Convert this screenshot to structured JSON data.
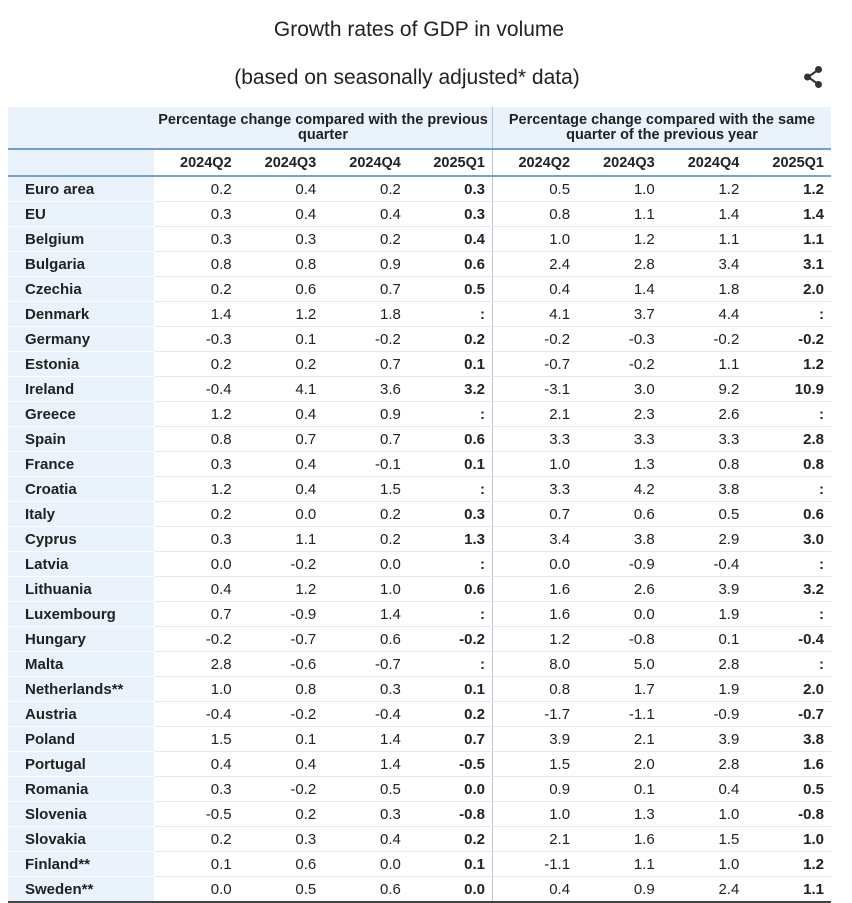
{
  "title": "Growth rates of GDP in volume",
  "subtitle": "(based on seasonally adjusted* data)",
  "share_icon": "share-icon",
  "header": {
    "group_qoq": "Percentage change compared with the previous quarter",
    "group_yoy": "Percentage change compared with the same quarter of the previous year",
    "quarters": [
      "2024Q2",
      "2024Q3",
      "2024Q4",
      "2025Q1"
    ]
  },
  "rows": [
    {
      "name": "Euro area",
      "qoq": [
        "0.2",
        "0.4",
        "0.2",
        "0.3"
      ],
      "yoy": [
        "0.5",
        "1.0",
        "1.2",
        "1.2"
      ]
    },
    {
      "name": "EU",
      "qoq": [
        "0.3",
        "0.4",
        "0.4",
        "0.3"
      ],
      "yoy": [
        "0.8",
        "1.1",
        "1.4",
        "1.4"
      ]
    },
    {
      "name": "Belgium",
      "qoq": [
        "0.3",
        "0.3",
        "0.2",
        "0.4"
      ],
      "yoy": [
        "1.0",
        "1.2",
        "1.1",
        "1.1"
      ]
    },
    {
      "name": "Bulgaria",
      "qoq": [
        "0.8",
        "0.8",
        "0.9",
        "0.6"
      ],
      "yoy": [
        "2.4",
        "2.8",
        "3.4",
        "3.1"
      ]
    },
    {
      "name": "Czechia",
      "qoq": [
        "0.2",
        "0.6",
        "0.7",
        "0.5"
      ],
      "yoy": [
        "0.4",
        "1.4",
        "1.8",
        "2.0"
      ]
    },
    {
      "name": "Denmark",
      "qoq": [
        "1.4",
        "1.2",
        "1.8",
        ":"
      ],
      "yoy": [
        "4.1",
        "3.7",
        "4.4",
        ":"
      ]
    },
    {
      "name": "Germany",
      "qoq": [
        "-0.3",
        "0.1",
        "-0.2",
        "0.2"
      ],
      "yoy": [
        "-0.2",
        "-0.3",
        "-0.2",
        "-0.2"
      ]
    },
    {
      "name": "Estonia",
      "qoq": [
        "0.2",
        "0.2",
        "0.7",
        "0.1"
      ],
      "yoy": [
        "-0.7",
        "-0.2",
        "1.1",
        "1.2"
      ]
    },
    {
      "name": "Ireland",
      "qoq": [
        "-0.4",
        "4.1",
        "3.6",
        "3.2"
      ],
      "yoy": [
        "-3.1",
        "3.0",
        "9.2",
        "10.9"
      ]
    },
    {
      "name": "Greece",
      "qoq": [
        "1.2",
        "0.4",
        "0.9",
        ":"
      ],
      "yoy": [
        "2.1",
        "2.3",
        "2.6",
        ":"
      ]
    },
    {
      "name": "Spain",
      "qoq": [
        "0.8",
        "0.7",
        "0.7",
        "0.6"
      ],
      "yoy": [
        "3.3",
        "3.3",
        "3.3",
        "2.8"
      ]
    },
    {
      "name": "France",
      "qoq": [
        "0.3",
        "0.4",
        "-0.1",
        "0.1"
      ],
      "yoy": [
        "1.0",
        "1.3",
        "0.8",
        "0.8"
      ]
    },
    {
      "name": "Croatia",
      "qoq": [
        "1.2",
        "0.4",
        "1.5",
        ":"
      ],
      "yoy": [
        "3.3",
        "4.2",
        "3.8",
        ":"
      ]
    },
    {
      "name": "Italy",
      "qoq": [
        "0.2",
        "0.0",
        "0.2",
        "0.3"
      ],
      "yoy": [
        "0.7",
        "0.6",
        "0.5",
        "0.6"
      ]
    },
    {
      "name": "Cyprus",
      "qoq": [
        "0.3",
        "1.1",
        "0.2",
        "1.3"
      ],
      "yoy": [
        "3.4",
        "3.8",
        "2.9",
        "3.0"
      ]
    },
    {
      "name": "Latvia",
      "qoq": [
        "0.0",
        "-0.2",
        "0.0",
        ":"
      ],
      "yoy": [
        "0.0",
        "-0.9",
        "-0.4",
        ":"
      ]
    },
    {
      "name": "Lithuania",
      "qoq": [
        "0.4",
        "1.2",
        "1.0",
        "0.6"
      ],
      "yoy": [
        "1.6",
        "2.6",
        "3.9",
        "3.2"
      ]
    },
    {
      "name": "Luxembourg",
      "qoq": [
        "0.7",
        "-0.9",
        "1.4",
        ":"
      ],
      "yoy": [
        "1.6",
        "0.0",
        "1.9",
        ":"
      ]
    },
    {
      "name": "Hungary",
      "qoq": [
        "-0.2",
        "-0.7",
        "0.6",
        "-0.2"
      ],
      "yoy": [
        "1.2",
        "-0.8",
        "0.1",
        "-0.4"
      ]
    },
    {
      "name": "Malta",
      "qoq": [
        "2.8",
        "-0.6",
        "-0.7",
        ":"
      ],
      "yoy": [
        "8.0",
        "5.0",
        "2.8",
        ":"
      ]
    },
    {
      "name": "Netherlands**",
      "qoq": [
        "1.0",
        "0.8",
        "0.3",
        "0.1"
      ],
      "yoy": [
        "0.8",
        "1.7",
        "1.9",
        "2.0"
      ]
    },
    {
      "name": "Austria",
      "qoq": [
        "-0.4",
        "-0.2",
        "-0.4",
        "0.2"
      ],
      "yoy": [
        "-1.7",
        "-1.1",
        "-0.9",
        "-0.7"
      ]
    },
    {
      "name": "Poland",
      "qoq": [
        "1.5",
        "0.1",
        "1.4",
        "0.7"
      ],
      "yoy": [
        "3.9",
        "2.1",
        "3.9",
        "3.8"
      ]
    },
    {
      "name": "Portugal",
      "qoq": [
        "0.4",
        "0.4",
        "1.4",
        "-0.5"
      ],
      "yoy": [
        "1.5",
        "2.0",
        "2.8",
        "1.6"
      ]
    },
    {
      "name": "Romania",
      "qoq": [
        "0.3",
        "-0.2",
        "0.5",
        "0.0"
      ],
      "yoy": [
        "0.9",
        "0.1",
        "0.4",
        "0.5"
      ]
    },
    {
      "name": "Slovenia",
      "qoq": [
        "-0.5",
        "0.2",
        "0.3",
        "-0.8"
      ],
      "yoy": [
        "1.0",
        "1.3",
        "1.0",
        "-0.8"
      ]
    },
    {
      "name": "Slovakia",
      "qoq": [
        "0.2",
        "0.3",
        "0.4",
        "0.2"
      ],
      "yoy": [
        "2.1",
        "1.6",
        "1.5",
        "1.0"
      ]
    },
    {
      "name": "Finland**",
      "qoq": [
        "0.1",
        "0.6",
        "0.0",
        "0.1"
      ],
      "yoy": [
        "-1.1",
        "1.1",
        "1.0",
        "1.2"
      ]
    },
    {
      "name": "Sweden**",
      "qoq": [
        "0.0",
        "0.5",
        "0.6",
        "0.0"
      ],
      "yoy": [
        "0.4",
        "0.9",
        "2.4",
        "1.1"
      ]
    }
  ]
}
